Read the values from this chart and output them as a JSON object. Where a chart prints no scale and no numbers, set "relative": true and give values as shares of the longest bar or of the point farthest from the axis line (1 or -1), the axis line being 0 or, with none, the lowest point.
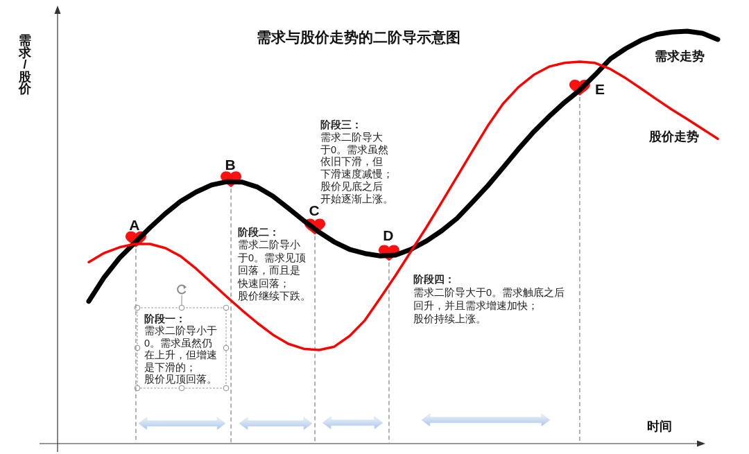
{
  "chart_data": {
    "type": "line",
    "title": "需求与股价走势的二阶导示意图",
    "xlabel": "时间",
    "ylabel": "需求/股价",
    "relative": true,
    "line_style": "solid",
    "categories": [
      null,
      null,
      null,
      null,
      null,
      null,
      null,
      null,
      null,
      null,
      null,
      null,
      null,
      null,
      null,
      null,
      null,
      null,
      null,
      null,
      null,
      null,
      null,
      null,
      null,
      null,
      null,
      null,
      null,
      null,
      null,
      null,
      null,
      null,
      null,
      null,
      null,
      null,
      null,
      null,
      null,
      null
    ],
    "series": [
      {
        "name": "需求走势",
        "color": "#000000",
        "values": [
          0.345,
          0.403,
          0.45,
          0.487,
          0.524,
          0.558,
          0.588,
          0.61,
          0.627,
          0.635,
          0.634,
          0.622,
          0.6,
          0.571,
          0.541,
          0.513,
          0.489,
          0.471,
          0.461,
          0.455,
          0.457,
          0.471,
          0.491,
          0.516,
          0.546,
          0.585,
          0.625,
          0.669,
          0.714,
          0.756,
          0.793,
          0.827,
          0.857,
          0.894,
          0.933,
          0.958,
          0.978,
          0.992,
          0.998,
          1.0,
          0.995,
          0.98
        ]
      },
      {
        "name": "股价走势",
        "color": "#ff0000",
        "values": [
          0.44,
          0.462,
          0.476,
          0.484,
          0.484,
          0.474,
          0.454,
          0.424,
          0.39,
          0.356,
          0.323,
          0.292,
          0.264,
          0.242,
          0.23,
          0.227,
          0.235,
          0.261,
          0.299,
          0.353,
          0.408,
          0.466,
          0.524,
          0.585,
          0.647,
          0.709,
          0.77,
          0.824,
          0.864,
          0.894,
          0.914,
          0.923,
          0.926,
          0.923,
          0.908,
          0.886,
          0.861,
          0.835,
          0.81,
          0.787,
          0.763,
          0.739
        ]
      }
    ],
    "annotations": [
      "阶段一：",
      "需求二阶导小于0。需求虽然仍在上升，但增速是下滑的；",
      "股价见顶回落。",
      "阶段二：",
      "需求二阶导小于0。需求见顶回落，而且是快速回落；",
      "股价继续下跌。",
      "阶段三：",
      "需求二阶导大于0。需求虽然依旧下滑，但下滑速度减慢；",
      "股价见底之后开始逐渐上涨。",
      "阶段四：",
      "需求二阶导大于0。需求触底之后回升，并且需求增速加快；",
      "股价持续上涨。",
      "A",
      "B",
      "C",
      "D",
      "E"
    ]
  }
}
